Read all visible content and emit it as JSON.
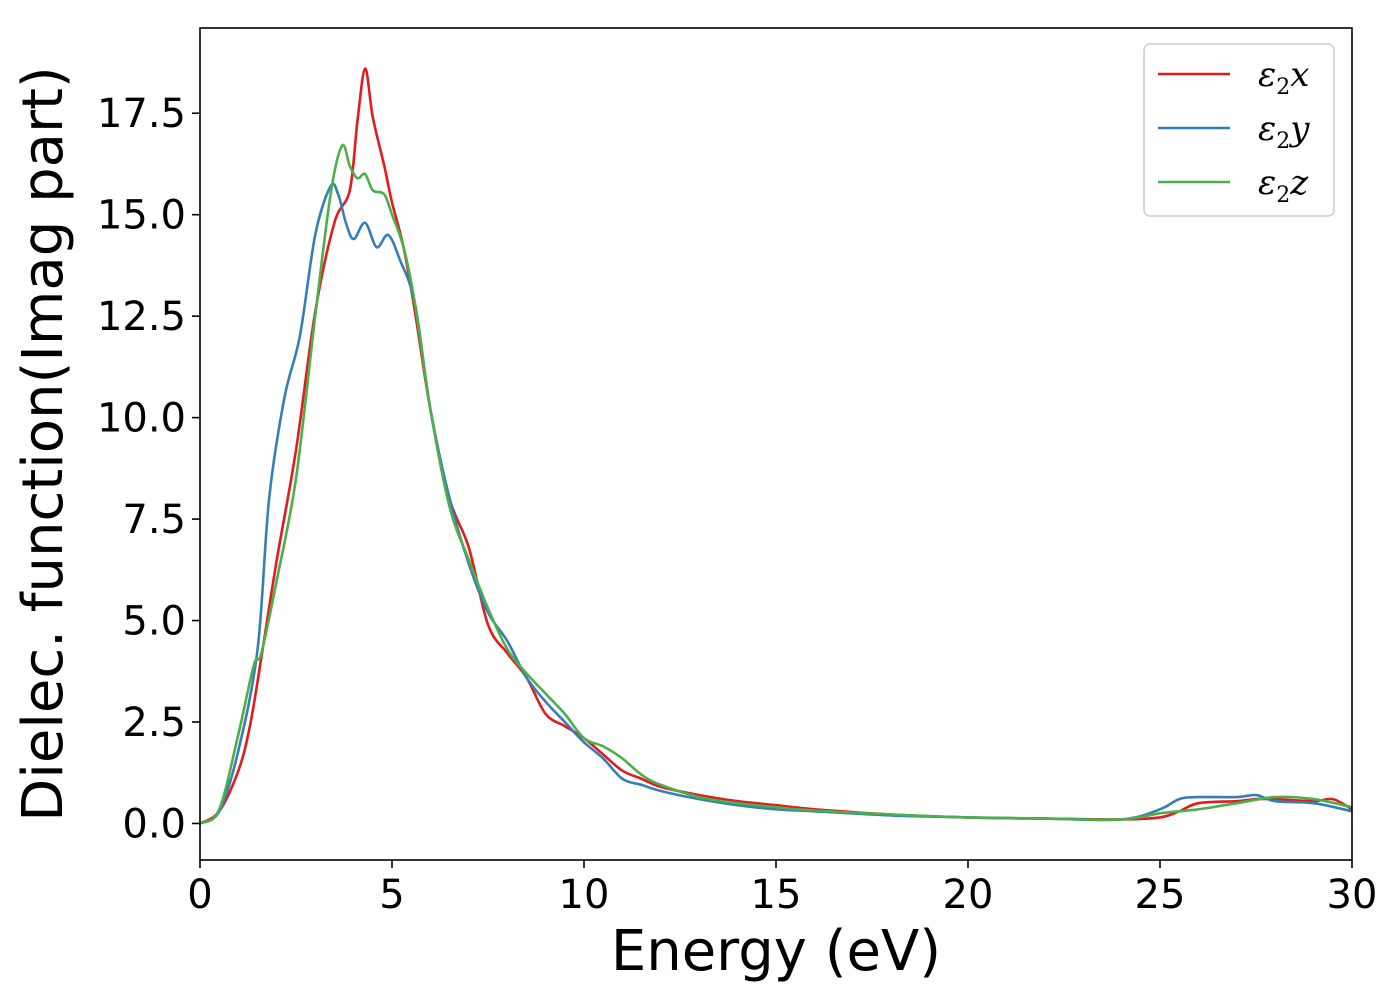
{
  "chart_data": {
    "type": "line",
    "xlabel": "Energy (eV)",
    "ylabel": "Dielec. function(Imag part)",
    "xlim": [
      0,
      30
    ],
    "ylim": [
      -0.9,
      19.6
    ],
    "xticks": [
      0,
      5,
      10,
      15,
      20,
      25,
      30
    ],
    "xtick_labels": [
      "0",
      "5",
      "10",
      "15",
      "20",
      "25",
      "30"
    ],
    "yticks": [
      0.0,
      2.5,
      5.0,
      7.5,
      10.0,
      12.5,
      15.0,
      17.5
    ],
    "ytick_labels": [
      "0.0",
      "2.5",
      "5.0",
      "7.5",
      "10.0",
      "12.5",
      "15.0",
      "17.5"
    ],
    "grid": false,
    "legend_position": "top-right",
    "series": [
      {
        "name": "ε2x",
        "label_base": "ε",
        "label_sub": "2",
        "label_tail": "x",
        "color": "#e41a1c",
        "x": [
          0,
          0.5,
          1.0,
          1.3,
          1.6,
          2.0,
          2.5,
          3.0,
          3.5,
          3.9,
          4.1,
          4.3,
          4.5,
          4.8,
          5.0,
          5.3,
          5.6,
          6.0,
          6.5,
          7.0,
          7.5,
          8.0,
          8.5,
          9.0,
          9.5,
          10.0,
          10.5,
          11.0,
          11.5,
          12.0,
          13.0,
          14.0,
          15.0,
          16.0,
          18.0,
          20.0,
          22.0,
          24.0,
          25.0,
          25.5,
          26.0,
          27.0,
          27.5,
          28.0,
          29.0,
          29.5,
          30.0
        ],
        "y": [
          0.0,
          0.3,
          1.3,
          2.4,
          4.1,
          6.5,
          9.2,
          12.6,
          14.8,
          15.6,
          17.3,
          18.6,
          17.4,
          16.2,
          15.3,
          14.2,
          12.6,
          10.2,
          8.0,
          6.8,
          4.9,
          4.2,
          3.6,
          2.7,
          2.4,
          2.1,
          1.7,
          1.3,
          1.1,
          0.9,
          0.7,
          0.55,
          0.45,
          0.35,
          0.22,
          0.15,
          0.12,
          0.1,
          0.15,
          0.3,
          0.5,
          0.55,
          0.6,
          0.6,
          0.55,
          0.6,
          0.35
        ]
      },
      {
        "name": "ε2y",
        "label_base": "ε",
        "label_sub": "2",
        "label_tail": "y",
        "color": "#377eb8",
        "x": [
          0,
          0.5,
          1.0,
          1.5,
          1.8,
          2.2,
          2.6,
          3.0,
          3.4,
          3.6,
          3.8,
          4.0,
          4.3,
          4.6,
          4.9,
          5.2,
          5.6,
          6.0,
          6.5,
          7.0,
          7.5,
          8.0,
          8.5,
          9.0,
          9.5,
          10.0,
          10.5,
          11.0,
          11.5,
          12.0,
          13.0,
          14.0,
          15.0,
          16.0,
          18.0,
          20.0,
          22.0,
          24.0,
          25.0,
          25.5,
          26.0,
          27.0,
          27.5,
          28.0,
          29.0,
          30.0
        ],
        "y": [
          0.0,
          0.3,
          1.8,
          4.3,
          8.0,
          10.5,
          12.0,
          14.5,
          15.7,
          15.5,
          14.8,
          14.4,
          14.8,
          14.2,
          14.5,
          13.9,
          12.8,
          10.2,
          8.0,
          6.4,
          5.2,
          4.5,
          3.6,
          3.0,
          2.5,
          2.0,
          1.6,
          1.1,
          0.95,
          0.8,
          0.6,
          0.45,
          0.35,
          0.3,
          0.2,
          0.15,
          0.12,
          0.1,
          0.35,
          0.6,
          0.65,
          0.65,
          0.7,
          0.55,
          0.5,
          0.3
        ]
      },
      {
        "name": "ε2z",
        "label_base": "ε",
        "label_sub": "2",
        "label_tail": "z",
        "color": "#4daf4a",
        "x": [
          0,
          0.5,
          1.0,
          1.4,
          1.6,
          2.0,
          2.5,
          3.0,
          3.4,
          3.7,
          3.9,
          4.1,
          4.3,
          4.5,
          4.8,
          5.0,
          5.3,
          5.6,
          6.0,
          6.5,
          7.0,
          7.5,
          8.0,
          8.5,
          9.0,
          9.5,
          10.0,
          10.5,
          11.0,
          11.5,
          12.0,
          13.0,
          14.0,
          15.0,
          16.0,
          18.0,
          20.0,
          22.0,
          24.0,
          25.0,
          26.0,
          27.0,
          28.0,
          29.0,
          30.0
        ],
        "y": [
          0.0,
          0.35,
          2.2,
          3.9,
          4.2,
          6.0,
          8.5,
          12.5,
          15.5,
          16.7,
          16.2,
          15.9,
          16.0,
          15.6,
          15.5,
          15.0,
          14.2,
          12.8,
          10.2,
          7.8,
          6.5,
          5.3,
          4.3,
          3.7,
          3.2,
          2.7,
          2.1,
          1.9,
          1.6,
          1.2,
          0.95,
          0.65,
          0.5,
          0.4,
          0.32,
          0.22,
          0.15,
          0.12,
          0.1,
          0.25,
          0.35,
          0.5,
          0.65,
          0.6,
          0.4
        ]
      }
    ]
  }
}
